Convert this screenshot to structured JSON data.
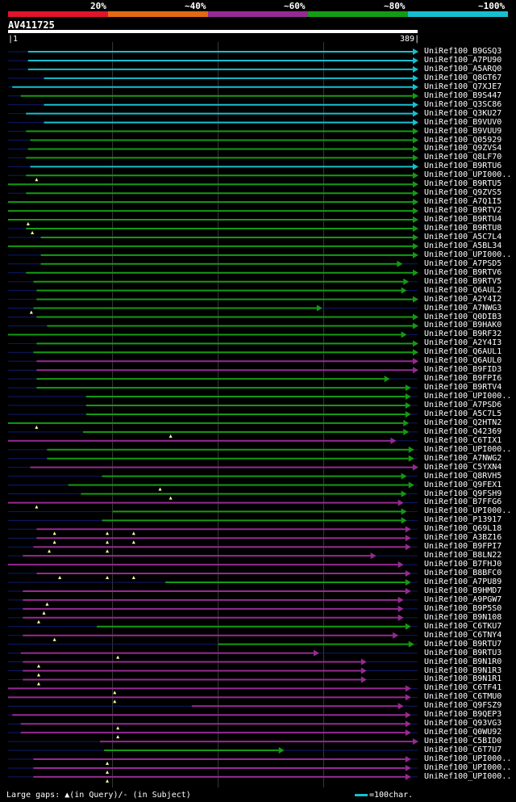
{
  "legend": {
    "labels": [
      "20%",
      "~40%",
      "~60%",
      "~80%",
      "~100%"
    ],
    "colors": [
      "#e0142b",
      "#e26a14",
      "#962a94",
      "#149b14",
      "#17bfcf"
    ]
  },
  "query": {
    "name": "AV411725",
    "start": "1",
    "end": "389"
  },
  "chart_data": {
    "type": "bar",
    "title": "AV411725",
    "x_range": [
      1,
      389
    ],
    "hits": [
      {
        "name": "UniRef100_B9GSQ3",
        "start": 20,
        "end": 389,
        "cls": 4
      },
      {
        "name": "UniRef100_A7PU90",
        "start": 20,
        "end": 389,
        "cls": 4
      },
      {
        "name": "UniRef100_A5ARQ0",
        "start": 20,
        "end": 389,
        "cls": 4
      },
      {
        "name": "UniRef100_Q8GT67",
        "start": 35,
        "end": 389,
        "cls": 4
      },
      {
        "name": "UniRef100_Q7XJE7",
        "start": 5,
        "end": 389,
        "cls": 4
      },
      {
        "name": "UniRef100_B9S447",
        "start": 13,
        "end": 389,
        "cls": 3
      },
      {
        "name": "UniRef100_Q3SC86",
        "start": 35,
        "end": 389,
        "cls": 4
      },
      {
        "name": "UniRef100_Q3KU27",
        "start": 18,
        "end": 389,
        "cls": 4
      },
      {
        "name": "UniRef100_B9VUV0",
        "start": 35,
        "end": 389,
        "cls": 4
      },
      {
        "name": "UniRef100_B9VUU9",
        "start": 18,
        "end": 389,
        "cls": 3
      },
      {
        "name": "UniRef100_Q05929",
        "start": 22,
        "end": 389,
        "cls": 3
      },
      {
        "name": "UniRef100_Q9ZVS4",
        "start": 20,
        "end": 389,
        "cls": 3
      },
      {
        "name": "UniRef100_Q8LF70",
        "start": 18,
        "end": 389,
        "cls": 3
      },
      {
        "name": "UniRef100_B9RTU6",
        "start": 22,
        "end": 389,
        "cls": 4
      },
      {
        "name": "UniRef100_UPI000..",
        "start": 18,
        "end": 389,
        "cls": 3,
        "gapsQ": [
          28
        ]
      },
      {
        "name": "UniRef100_B9RTU5",
        "start": 1,
        "end": 389,
        "cls": 3
      },
      {
        "name": "UniRef100_Q9ZVS5",
        "start": 18,
        "end": 389,
        "cls": 3
      },
      {
        "name": "UniRef100_A7Q1I5",
        "start": 1,
        "end": 389,
        "cls": 3
      },
      {
        "name": "UniRef100_B9RTV2",
        "start": 1,
        "end": 389,
        "cls": 3
      },
      {
        "name": "UniRef100_B9RTU4",
        "start": 1,
        "end": 389,
        "cls": 3,
        "gapsQ": [
          20
        ]
      },
      {
        "name": "UniRef100_B9RTU8",
        "start": 18,
        "end": 389,
        "cls": 3,
        "gapsQ": [
          24
        ]
      },
      {
        "name": "UniRef100_A5C7L4",
        "start": 32,
        "end": 389,
        "cls": 3
      },
      {
        "name": "UniRef100_A5BL34",
        "start": 1,
        "end": 389,
        "cls": 3
      },
      {
        "name": "UniRef100_UPI000..",
        "start": 32,
        "end": 389,
        "cls": 3
      },
      {
        "name": "UniRef100_A7PSD5",
        "start": 32,
        "end": 374,
        "cls": 3
      },
      {
        "name": "UniRef100_B9RTV6",
        "start": 18,
        "end": 389,
        "cls": 3
      },
      {
        "name": "UniRef100_B9RTV5",
        "start": 25,
        "end": 380,
        "cls": 3
      },
      {
        "name": "UniRef100_Q6AUL2",
        "start": 28,
        "end": 378,
        "cls": 3
      },
      {
        "name": "UniRef100_A2Y4I2",
        "start": 28,
        "end": 389,
        "cls": 3
      },
      {
        "name": "UniRef100_A7NWG3",
        "start": 25,
        "end": 298,
        "cls": 3,
        "gapsQ": [
          23
        ]
      },
      {
        "name": "UniRef100_Q0DIB3",
        "start": 28,
        "end": 389,
        "cls": 3
      },
      {
        "name": "UniRef100_B9HAK0",
        "start": 38,
        "end": 389,
        "cls": 3
      },
      {
        "name": "UniRef100_B9RF32",
        "start": 1,
        "end": 378,
        "cls": 3
      },
      {
        "name": "UniRef100_A2Y4I3",
        "start": 28,
        "end": 389,
        "cls": 3
      },
      {
        "name": "UniRef100_Q6AUL1",
        "start": 25,
        "end": 389,
        "cls": 3
      },
      {
        "name": "UniRef100_Q6AUL0",
        "start": 28,
        "end": 389,
        "cls": 2
      },
      {
        "name": "UniRef100_B9FID3",
        "start": 28,
        "end": 389,
        "cls": 2
      },
      {
        "name": "UniRef100_B9FPI6",
        "start": 28,
        "end": 362,
        "cls": 3
      },
      {
        "name": "UniRef100_B9RTV4",
        "start": 28,
        "end": 382,
        "cls": 3
      },
      {
        "name": "UniRef100_UPI000..",
        "start": 75,
        "end": 382,
        "cls": 3
      },
      {
        "name": "UniRef100_A7PSD6",
        "start": 75,
        "end": 382,
        "cls": 3
      },
      {
        "name": "UniRef100_A5C7L5",
        "start": 75,
        "end": 382,
        "cls": 3
      },
      {
        "name": "UniRef100_Q2HTN2",
        "start": 1,
        "end": 380,
        "cls": 3,
        "gapsQ": [
          28
        ]
      },
      {
        "name": "UniRef100_Q42369",
        "start": 72,
        "end": 380,
        "cls": 3,
        "gapsQ": [
          155
        ]
      },
      {
        "name": "UniRef100_C6TIX1",
        "start": 1,
        "end": 368,
        "cls": 2
      },
      {
        "name": "UniRef100_UPI000..",
        "start": 38,
        "end": 385,
        "cls": 3
      },
      {
        "name": "UniRef100_A7NWG2",
        "start": 38,
        "end": 385,
        "cls": 3
      },
      {
        "name": "UniRef100_C5YXN4",
        "start": 22,
        "end": 389,
        "cls": 2
      },
      {
        "name": "UniRef100_Q8RVH5",
        "start": 90,
        "end": 378,
        "cls": 3
      },
      {
        "name": "UniRef100_Q9FEX1",
        "start": 58,
        "end": 385,
        "cls": 3,
        "gapsQ": [
          145
        ]
      },
      {
        "name": "UniRef100_Q9FSH9",
        "start": 70,
        "end": 378,
        "cls": 3,
        "gapsQ": [
          155
        ]
      },
      {
        "name": "UniRef100_B7FFG6",
        "start": 1,
        "end": 375,
        "cls": 2,
        "gapsQ": [
          28
        ]
      },
      {
        "name": "UniRef100_UPI000..",
        "start": 100,
        "end": 378,
        "cls": 3
      },
      {
        "name": "UniRef100_P13917",
        "start": 90,
        "end": 378,
        "cls": 3
      },
      {
        "name": "UniRef100_Q69L18",
        "start": 28,
        "end": 382,
        "cls": 2,
        "gapsQ": [
          45,
          95,
          120
        ]
      },
      {
        "name": "UniRef100_A3BZ16",
        "start": 28,
        "end": 382,
        "cls": 2,
        "gapsQ": [
          45,
          95,
          120
        ]
      },
      {
        "name": "UniRef100_B9FPI7",
        "start": 25,
        "end": 382,
        "cls": 2,
        "gapsQ": [
          40,
          95
        ]
      },
      {
        "name": "UniRef100_B8LN22",
        "start": 15,
        "end": 349,
        "cls": 2
      },
      {
        "name": "UniRef100_B7FHJ0",
        "start": 1,
        "end": 375,
        "cls": 2
      },
      {
        "name": "UniRef100_B8BFC0",
        "start": 28,
        "end": 382,
        "cls": 2,
        "gapsQ": [
          50,
          95,
          120
        ]
      },
      {
        "name": "UniRef100_A7PU89",
        "start": 150,
        "end": 382,
        "cls": 3
      },
      {
        "name": "UniRef100_B9HMD7",
        "start": 15,
        "end": 382,
        "cls": 2
      },
      {
        "name": "UniRef100_A9PGW7",
        "start": 15,
        "end": 375,
        "cls": 2,
        "gapsQ": [
          38
        ]
      },
      {
        "name": "UniRef100_B9P5S0",
        "start": 15,
        "end": 375,
        "cls": 2,
        "gapsQ": [
          35
        ]
      },
      {
        "name": "UniRef100_B9N108",
        "start": 15,
        "end": 375,
        "cls": 2,
        "gapsQ": [
          30
        ]
      },
      {
        "name": "UniRef100_C6TKU7",
        "start": 85,
        "end": 382,
        "cls": 3
      },
      {
        "name": "UniRef100_C6TNY4",
        "start": 15,
        "end": 370,
        "cls": 2,
        "gapsQ": [
          45
        ]
      },
      {
        "name": "UniRef100_B9RTU7",
        "start": 200,
        "end": 385,
        "cls": 3
      },
      {
        "name": "UniRef100_B9RTU3",
        "start": 13,
        "end": 295,
        "cls": 2,
        "gapsQ": [
          105
        ]
      },
      {
        "name": "UniRef100_B9N1R0",
        "start": 15,
        "end": 340,
        "cls": 2,
        "gapsQ": [
          30
        ]
      },
      {
        "name": "UniRef100_B9N1R3",
        "start": 15,
        "end": 340,
        "cls": 2,
        "gapsQ": [
          30
        ]
      },
      {
        "name": "UniRef100_B9N1R1",
        "start": 15,
        "end": 340,
        "cls": 2,
        "gapsQ": [
          30
        ]
      },
      {
        "name": "UniRef100_C6TF41",
        "start": 1,
        "end": 382,
        "cls": 2,
        "gapsQ": [
          102
        ]
      },
      {
        "name": "UniRef100_C6TMU0",
        "start": 1,
        "end": 382,
        "cls": 2,
        "gapsQ": [
          102
        ]
      },
      {
        "name": "UniRef100_Q9FSZ9",
        "start": 175,
        "end": 375,
        "cls": 2
      },
      {
        "name": "UniRef100_B9QEP3",
        "start": 5,
        "end": 382,
        "cls": 2
      },
      {
        "name": "UniRef100_Q93VG3",
        "start": 13,
        "end": 382,
        "cls": 2,
        "gapsQ": [
          105
        ]
      },
      {
        "name": "UniRef100_Q0WU92",
        "start": 13,
        "end": 382,
        "cls": 2,
        "gapsQ": [
          105
        ]
      },
      {
        "name": "UniRef100_C5BID0",
        "start": 88,
        "end": 389,
        "cls": 2
      },
      {
        "name": "UniRef100_C6T7U7",
        "start": 92,
        "end": 262,
        "cls": 3
      },
      {
        "name": "UniRef100_UPI000..",
        "start": 25,
        "end": 382,
        "cls": 2,
        "gapsQ": [
          95
        ]
      },
      {
        "name": "UniRef100_UPI000..",
        "start": 25,
        "end": 382,
        "cls": 2,
        "gapsQ": [
          95
        ]
      },
      {
        "name": "UniRef100_UPI000..",
        "start": 25,
        "end": 382,
        "cls": 2,
        "gapsQ": [
          95
        ]
      }
    ]
  },
  "footer": {
    "gaps_text": "Large gaps: ▲(in Query)/- (in Subject)",
    "scale_text": "=100char."
  }
}
